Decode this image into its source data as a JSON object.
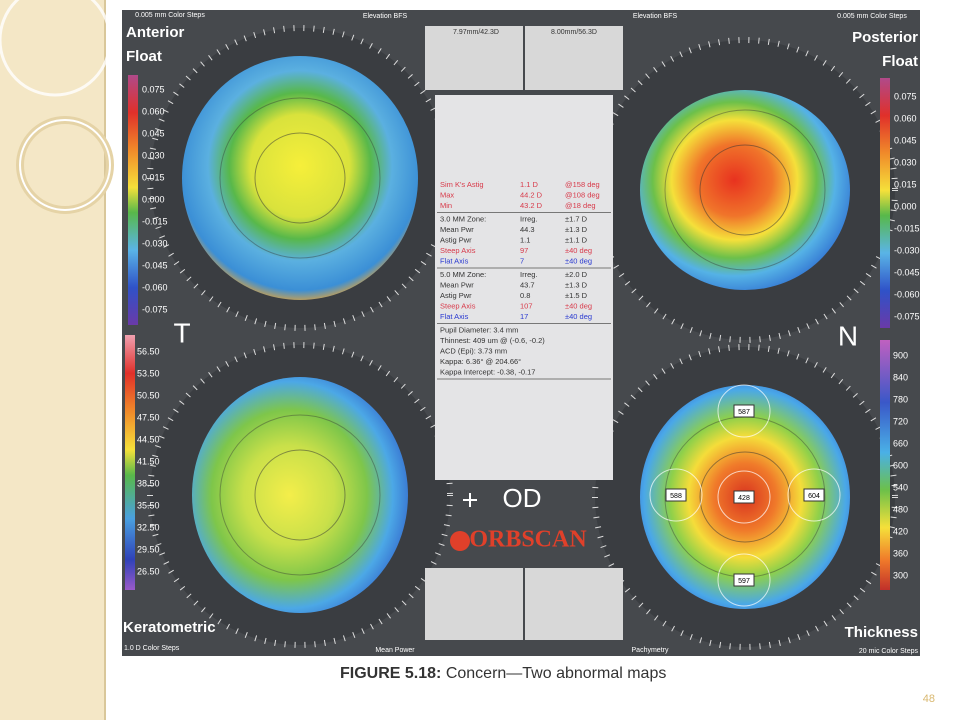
{
  "figure": {
    "caption_label": "FIGURE 5.18:",
    "caption_text": "Concern—Two abnormal maps"
  },
  "slide": {
    "page_number": "48"
  },
  "side_labels": {
    "left": "T",
    "right": "N"
  },
  "maps": [
    {
      "title": [
        "Anterior",
        "Float"
      ],
      "scale_note": "0.005 mm Color Steps",
      "map_caption": "Elevation BFS",
      "scale": [
        "0.075",
        "0.060",
        "0.045",
        "0.030",
        "0.015",
        "0.000",
        "-0.015",
        "-0.030",
        "-0.045",
        "-0.060",
        "-0.075"
      ]
    },
    {
      "title": [
        "Posterior",
        "Float"
      ],
      "scale_note": "0.005 mm Color Steps",
      "map_caption": "Elevation BFS",
      "scale": [
        "0.075",
        "0.060",
        "0.045",
        "0.030",
        "0.015",
        "0.000",
        "-0.015",
        "-0.030",
        "-0.045",
        "-0.060",
        "-0.075"
      ]
    },
    {
      "title": [
        "Keratometric"
      ],
      "scale_note": "1.0 D Color Steps",
      "map_caption": "Mean Power",
      "scale": [
        "56.50",
        "53.50",
        "50.50",
        "47.50",
        "44.50",
        "41.50",
        "38.50",
        "35.50",
        "32.50",
        "29.50",
        "26.50"
      ]
    },
    {
      "title": [
        "Thickness"
      ],
      "scale_note": "20 mic Color Steps",
      "map_caption": "Pachymetry",
      "scale": [
        "900",
        "840",
        "780",
        "720",
        "660",
        "600",
        "540",
        "480",
        "420",
        "360",
        "300"
      ],
      "markers": [
        "587",
        "588",
        "428",
        "604",
        "597"
      ]
    }
  ],
  "center": {
    "header": [
      "7.97mm/42.3D",
      "8.00mm/56.3D"
    ],
    "blocks": [
      [
        [
          "Sim K's Astig",
          "1.1 D",
          "@158 deg"
        ],
        [
          "Max",
          "44.2 D",
          "@108 deg"
        ],
        [
          "Min",
          "43.2 D",
          "@18 deg"
        ]
      ],
      [
        [
          "3.0 MM Zone:",
          "Irreg.",
          "±1.7 D"
        ],
        [
          "Mean Pwr",
          "44.3",
          "±1.3 D"
        ],
        [
          "Astig Pwr",
          "1.1",
          "±1.1 D"
        ],
        [
          "Steep Axis",
          "97",
          "±40 deg"
        ],
        [
          "Flat Axis",
          "7",
          "±40 deg"
        ]
      ],
      [
        [
          "5.0 MM Zone:",
          "Irreg.",
          "±2.0 D"
        ],
        [
          "Mean Pwr",
          "43.7",
          "±1.3 D"
        ],
        [
          "Astig Pwr",
          "0.8",
          "±1.5 D"
        ],
        [
          "Steep Axis",
          "107",
          "±40 deg"
        ],
        [
          "Flat Axis",
          "17",
          "±40 deg"
        ]
      ],
      [
        [
          "Pupil Diameter: 3.4 mm"
        ],
        [
          "Thinnest: 409 um @ (-0.6, -0.2)"
        ],
        [
          "ACD (Epi): 3.73 mm"
        ],
        [
          "Kappa: 6.36° @ 204.66°"
        ],
        [
          "Kappa Intercept: -0.38, -0.17"
        ]
      ]
    ],
    "eye": "OD",
    "brand": "ORBSCAN"
  }
}
